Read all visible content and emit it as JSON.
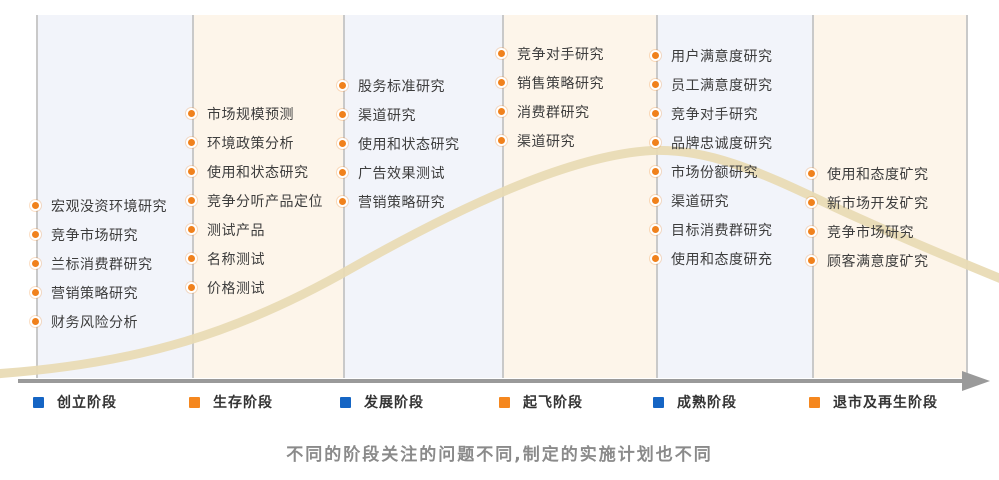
{
  "stages": [
    {
      "name": "创立阶段",
      "legend_color": "#1565c4",
      "items": [
        "宏观没资环境研究",
        "竞争市场研究",
        "兰标消费群研究",
        "营销策略研究",
        "财务风险分析"
      ]
    },
    {
      "name": "生存阶段",
      "legend_color": "#f5871e",
      "items": [
        "市场规模预测",
        "环境政策分析",
        "使用和状态研究",
        "竞争分听产品定位",
        "测试产品",
        "名称测试",
        "价格测试"
      ]
    },
    {
      "name": "发展阶段",
      "legend_color": "#1565c4",
      "items": [
        "股务标准研究",
        "渠道研究",
        "使用和状态研究",
        "广告效果测试",
        "营销策略研究"
      ]
    },
    {
      "name": "起飞阶段",
      "legend_color": "#f5871e",
      "items": [
        "竞争对手研究",
        "销售策略研究",
        "消费群研究",
        "渠道研究"
      ]
    },
    {
      "name": "成熟阶段",
      "legend_color": "#1565c4",
      "items": [
        "用户满意度研究",
        "员工满意度研究",
        "竞争对手研究",
        "品牌忠诚度研究",
        "市场份额研究",
        "渠道研究",
        "目标消费群研究",
        "使用和态度研充"
      ]
    },
    {
      "name": "退市及再生阶段",
      "legend_color": "#f5871e",
      "items": [
        "使用和态度矿究",
        "新市场开发矿究",
        "竞争市场研究",
        "顾客满意度矿究"
      ]
    }
  ],
  "caption": "不同的阶段关注的问题不同,制定的实施计划也不同",
  "colors": {
    "column_blue_bg": "#f2f4fa",
    "column_cream_bg": "#fdf5ea",
    "divider": "#c9c9c9",
    "bullet_orange": "#f0811c",
    "curve_tan": "#e9dbb5",
    "axis_gray": "#9a9a9a",
    "legend_blue": "#1565c4",
    "legend_orange": "#f5871e",
    "item_text": "#3d3d3d",
    "caption_text": "#8a8a8a"
  },
  "icons": {
    "bullet": "orange-dot-icon",
    "legend_marker": "color-square-icon",
    "axis_arrow": "right-arrow-icon"
  }
}
